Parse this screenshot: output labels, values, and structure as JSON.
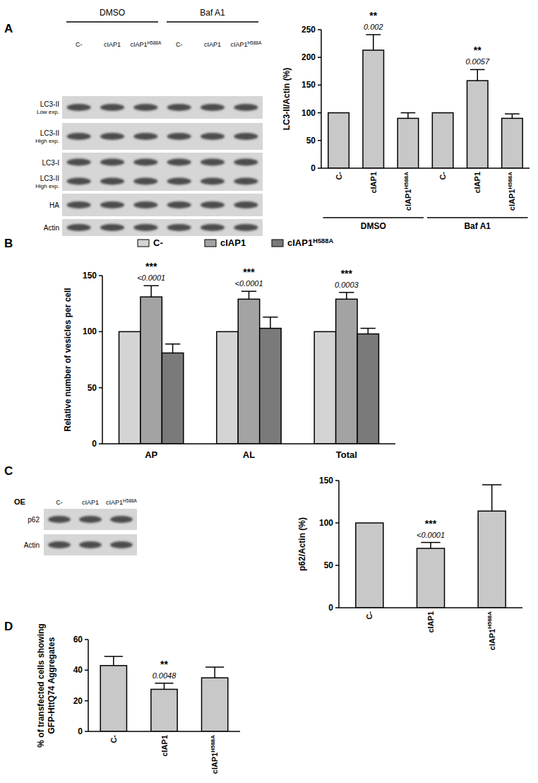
{
  "panel_labels": [
    "A",
    "B",
    "C",
    "D"
  ],
  "chart_data": [
    {
      "type": "bar",
      "categories": [
        "C-",
        "cIAP1",
        "cIAP1H588A",
        "C-",
        "cIAP1",
        "cIAP1H588A"
      ],
      "group_labels": [
        "DMSO",
        "Baf A1"
      ],
      "values": [
        100,
        213,
        90,
        100,
        158,
        90
      ],
      "errors": [
        null,
        28,
        10,
        null,
        20,
        8
      ],
      "color": "#c8c8c8",
      "y_label": "LC3-II/Actin (%)",
      "ylim": [
        0,
        250
      ],
      "yticks": [
        0,
        50,
        100,
        150,
        200,
        250
      ],
      "significance": [
        null,
        "**",
        null,
        null,
        "**",
        null
      ],
      "p_values": [
        null,
        "0.002",
        null,
        null,
        "0.0057",
        null
      ]
    },
    {
      "type": "bar",
      "categories": [
        "AP",
        "AL",
        "Total"
      ],
      "series": [
        {
          "name": "C-",
          "color": "#d4d4d4",
          "values": [
            100,
            100,
            100
          ],
          "errors": [
            null,
            null,
            null
          ]
        },
        {
          "name": "cIAP1",
          "color": "#a3a3a3",
          "values": [
            131,
            129,
            129
          ],
          "errors": [
            10,
            7,
            6
          ]
        },
        {
          "name": "cIAP1H588A",
          "color": "#7a7a7a",
          "values": [
            81,
            103,
            98
          ],
          "errors": [
            8,
            10,
            5
          ]
        }
      ],
      "legend": "top",
      "y_label": "Relative number of vesicles per cell",
      "ylim": [
        0,
        150
      ],
      "yticks": [
        0,
        50,
        100,
        150
      ],
      "significance": [
        "***",
        "***",
        "***"
      ],
      "p_values": [
        "<0.0001",
        "<0.0001",
        "0.0003"
      ]
    },
    {
      "type": "bar",
      "categories": [
        "C-",
        "cIAP1",
        "cIAP1H588A"
      ],
      "values": [
        100,
        70,
        114
      ],
      "errors": [
        null,
        7,
        31
      ],
      "color": "#c8c8c8",
      "y_label": "p62/Actin (%)",
      "ylim": [
        0,
        150
      ],
      "yticks": [
        0,
        50,
        100,
        150
      ],
      "significance": [
        null,
        "***",
        null
      ],
      "p_values": [
        null,
        "<0.0001",
        null
      ]
    },
    {
      "type": "bar",
      "categories": [
        "C-",
        "cIAP1",
        "cIAP1H588A"
      ],
      "values": [
        43,
        27.5,
        35
      ],
      "errors": [
        6,
        4,
        7
      ],
      "color": "#c8c8c8",
      "y_label": [
        "% of transfected cells showing",
        "GFP-HttQ74 Aggregates"
      ],
      "ylim": [
        0,
        60
      ],
      "yticks": [
        0,
        20,
        40,
        60
      ],
      "significance": [
        null,
        "**",
        null
      ],
      "p_values": [
        null,
        "0.0048",
        null
      ]
    }
  ],
  "blots": [
    {
      "header_groups": [
        "DMSO",
        "Baf A1"
      ],
      "lanes": [
        "C-",
        "cIAP1",
        "cIAP1H588A",
        "C-",
        "cIAP1",
        "cIAP1H588A"
      ],
      "strips": [
        {
          "bands": [
            [
              "LC3-II",
              "Low exp."
            ]
          ]
        },
        {
          "bands": [
            [
              "LC3-II",
              "High exp."
            ]
          ]
        },
        {
          "bands": [
            [
              "LC3-I"
            ],
            [
              "LC3-II",
              "High exp."
            ]
          ]
        },
        {
          "bands": [
            [
              "HA"
            ]
          ]
        },
        {
          "bands": [
            [
              "Actin"
            ]
          ]
        }
      ]
    },
    {
      "row_header": "OE",
      "lanes": [
        "C-",
        "cIAP1",
        "cIAP1H588A"
      ],
      "strips": [
        {
          "bands": [
            [
              "p62"
            ]
          ]
        },
        {
          "bands": [
            [
              "Actin"
            ]
          ]
        }
      ]
    }
  ]
}
